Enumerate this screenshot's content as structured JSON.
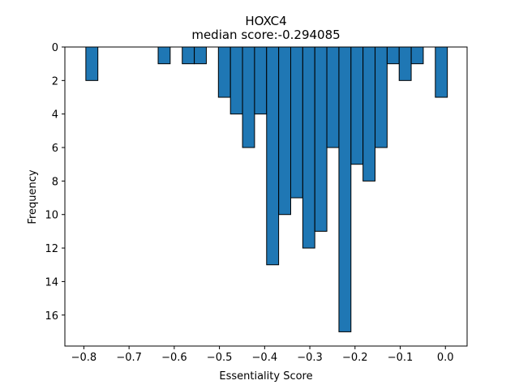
{
  "chart_data": {
    "type": "bar",
    "title": "HOXC4",
    "subtitle": "median score:-0.294085",
    "xlabel": "Essentiality Score",
    "ylabel": "Frequency",
    "xlim": [
      -0.842,
      0.048
    ],
    "ylim": [
      0,
      17.85
    ],
    "y_inverted": true,
    "grid": false,
    "bar_color": "#1f77b4",
    "edge_color": "#000000",
    "bin_width": 0.0266,
    "x_ticks": [
      -0.8,
      -0.7,
      -0.6,
      -0.5,
      -0.4,
      -0.3,
      -0.2,
      -0.1,
      0.0
    ],
    "x_tick_labels": [
      "−0.8",
      "−0.7",
      "−0.6",
      "−0.5",
      "−0.4",
      "−0.3",
      "−0.2",
      "−0.1",
      "0.0"
    ],
    "y_ticks": [
      0,
      2,
      4,
      6,
      8,
      10,
      12,
      14,
      16
    ],
    "y_tick_labels": [
      "0",
      "2",
      "4",
      "6",
      "8",
      "10",
      "12",
      "14",
      "16"
    ],
    "bins_left": [
      -0.7956,
      -0.6356,
      -0.5823,
      -0.5556,
      -0.5023,
      -0.4756,
      -0.4489,
      -0.4223,
      -0.3956,
      -0.3689,
      -0.3423,
      -0.3156,
      -0.2889,
      -0.2623,
      -0.2356,
      -0.2089,
      -0.1823,
      -0.1556,
      -0.1289,
      -0.1023,
      -0.0756,
      -0.0223
    ],
    "values": [
      2,
      1,
      1,
      1,
      3,
      4,
      6,
      4,
      13,
      10,
      9,
      12,
      11,
      6,
      17,
      7,
      8,
      6,
      1,
      2,
      1,
      3
    ]
  }
}
